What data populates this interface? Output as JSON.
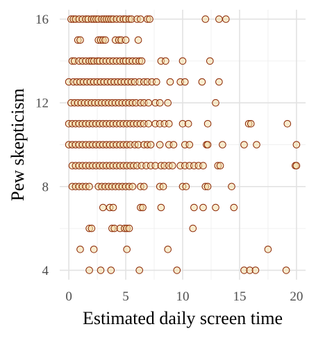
{
  "chart_data": {
    "type": "scatter",
    "title": "",
    "xlabel": "Estimated daily screen time",
    "ylabel": "Pew skepticism",
    "xlim": [
      -0.8,
      20.8
    ],
    "ylim": [
      3.55,
      16.45
    ],
    "x_ticks": [
      0,
      5,
      10,
      15,
      20
    ],
    "y_ticks": [
      4,
      8,
      12,
      16
    ],
    "grid": true,
    "legend": "none",
    "marker": {
      "shape": "open-circle",
      "stroke": "#8B2500",
      "fill": "#F2DDA6"
    },
    "points": [
      [
        0.2,
        16
      ],
      [
        0.4,
        16
      ],
      [
        0.6,
        16
      ],
      [
        0.9,
        16
      ],
      [
        1.2,
        16
      ],
      [
        1.5,
        16
      ],
      [
        1.7,
        16
      ],
      [
        2.0,
        16
      ],
      [
        2.2,
        16
      ],
      [
        2.4,
        16
      ],
      [
        2.6,
        16
      ],
      [
        2.9,
        16
      ],
      [
        3.1,
        16
      ],
      [
        3.3,
        16
      ],
      [
        3.5,
        16
      ],
      [
        3.7,
        16
      ],
      [
        3.9,
        16
      ],
      [
        4.2,
        16
      ],
      [
        4.5,
        16
      ],
      [
        4.8,
        16
      ],
      [
        5.0,
        16
      ],
      [
        5.3,
        16
      ],
      [
        5.5,
        16
      ],
      [
        6.0,
        16
      ],
      [
        6.3,
        16
      ],
      [
        6.9,
        16
      ],
      [
        7.1,
        16
      ],
      [
        12.0,
        16
      ],
      [
        13.2,
        16
      ],
      [
        13.8,
        16
      ],
      [
        0.8,
        15
      ],
      [
        1.0,
        15
      ],
      [
        2.6,
        15
      ],
      [
        2.8,
        15
      ],
      [
        3.0,
        15
      ],
      [
        3.2,
        15
      ],
      [
        4.1,
        15
      ],
      [
        4.4,
        15
      ],
      [
        4.6,
        15
      ],
      [
        5.0,
        15
      ],
      [
        6.1,
        15
      ],
      [
        0.3,
        14
      ],
      [
        0.5,
        14
      ],
      [
        0.9,
        14
      ],
      [
        1.2,
        14
      ],
      [
        1.5,
        14
      ],
      [
        1.8,
        14
      ],
      [
        2.0,
        14
      ],
      [
        2.2,
        14
      ],
      [
        2.5,
        14
      ],
      [
        2.7,
        14
      ],
      [
        3.0,
        14
      ],
      [
        3.3,
        14
      ],
      [
        3.6,
        14
      ],
      [
        3.9,
        14
      ],
      [
        4.2,
        14
      ],
      [
        4.5,
        14
      ],
      [
        4.8,
        14
      ],
      [
        5.0,
        14
      ],
      [
        5.3,
        14
      ],
      [
        5.6,
        14
      ],
      [
        5.9,
        14
      ],
      [
        6.2,
        14
      ],
      [
        6.4,
        14
      ],
      [
        8.1,
        14
      ],
      [
        8.5,
        14
      ],
      [
        10.0,
        14
      ],
      [
        12.4,
        14
      ],
      [
        0.0,
        13
      ],
      [
        0.4,
        13
      ],
      [
        0.7,
        13
      ],
      [
        1.0,
        13
      ],
      [
        1.3,
        13
      ],
      [
        1.6,
        13
      ],
      [
        1.9,
        13
      ],
      [
        2.2,
        13
      ],
      [
        2.5,
        13
      ],
      [
        2.8,
        13
      ],
      [
        3.1,
        13
      ],
      [
        3.4,
        13
      ],
      [
        3.7,
        13
      ],
      [
        4.0,
        13
      ],
      [
        4.3,
        13
      ],
      [
        4.6,
        13
      ],
      [
        4.9,
        13
      ],
      [
        5.2,
        13
      ],
      [
        5.5,
        13
      ],
      [
        5.8,
        13
      ],
      [
        6.2,
        13
      ],
      [
        6.6,
        13
      ],
      [
        6.9,
        13
      ],
      [
        7.3,
        13
      ],
      [
        7.7,
        13
      ],
      [
        8.9,
        13
      ],
      [
        9.8,
        13
      ],
      [
        10.2,
        13
      ],
      [
        11.7,
        13
      ],
      [
        13.2,
        13
      ],
      [
        0.2,
        12
      ],
      [
        0.5,
        12
      ],
      [
        0.8,
        12
      ],
      [
        1.1,
        12
      ],
      [
        1.4,
        12
      ],
      [
        1.7,
        12
      ],
      [
        2.0,
        12
      ],
      [
        2.3,
        12
      ],
      [
        2.6,
        12
      ],
      [
        2.9,
        12
      ],
      [
        3.2,
        12
      ],
      [
        3.5,
        12
      ],
      [
        3.8,
        12
      ],
      [
        4.1,
        12
      ],
      [
        4.4,
        12
      ],
      [
        4.7,
        12
      ],
      [
        5.0,
        12
      ],
      [
        5.3,
        12
      ],
      [
        5.6,
        12
      ],
      [
        5.9,
        12
      ],
      [
        6.3,
        12
      ],
      [
        6.6,
        12
      ],
      [
        7.0,
        12
      ],
      [
        7.6,
        12
      ],
      [
        8.0,
        12
      ],
      [
        8.7,
        12
      ],
      [
        12.9,
        12
      ],
      [
        0.0,
        11
      ],
      [
        0.3,
        11
      ],
      [
        0.6,
        11
      ],
      [
        0.9,
        11
      ],
      [
        1.2,
        11
      ],
      [
        1.5,
        11
      ],
      [
        1.8,
        11
      ],
      [
        2.1,
        11
      ],
      [
        2.4,
        11
      ],
      [
        2.7,
        11
      ],
      [
        3.0,
        11
      ],
      [
        3.3,
        11
      ],
      [
        3.6,
        11
      ],
      [
        3.9,
        11
      ],
      [
        4.2,
        11
      ],
      [
        4.5,
        11
      ],
      [
        4.8,
        11
      ],
      [
        5.1,
        11
      ],
      [
        5.4,
        11
      ],
      [
        5.7,
        11
      ],
      [
        6.0,
        11
      ],
      [
        6.3,
        11
      ],
      [
        6.6,
        11
      ],
      [
        7.0,
        11
      ],
      [
        7.6,
        11
      ],
      [
        8.0,
        11
      ],
      [
        8.4,
        11
      ],
      [
        8.8,
        11
      ],
      [
        10.0,
        11
      ],
      [
        10.5,
        11
      ],
      [
        12.2,
        11
      ],
      [
        15.8,
        11
      ],
      [
        16.0,
        11
      ],
      [
        19.2,
        11
      ],
      [
        0.0,
        10
      ],
      [
        0.3,
        10
      ],
      [
        0.6,
        10
      ],
      [
        0.9,
        10
      ],
      [
        1.2,
        10
      ],
      [
        1.5,
        10
      ],
      [
        1.8,
        10
      ],
      [
        2.1,
        10
      ],
      [
        2.4,
        10
      ],
      [
        2.7,
        10
      ],
      [
        3.0,
        10
      ],
      [
        3.3,
        10
      ],
      [
        3.6,
        10
      ],
      [
        3.9,
        10
      ],
      [
        4.2,
        10
      ],
      [
        4.5,
        10
      ],
      [
        4.8,
        10
      ],
      [
        5.1,
        10
      ],
      [
        5.4,
        10
      ],
      [
        5.8,
        10
      ],
      [
        6.1,
        10
      ],
      [
        6.6,
        10
      ],
      [
        6.9,
        10
      ],
      [
        7.2,
        10
      ],
      [
        8.0,
        10
      ],
      [
        8.8,
        10
      ],
      [
        9.2,
        10
      ],
      [
        10.2,
        10
      ],
      [
        10.6,
        10
      ],
      [
        12.1,
        10
      ],
      [
        12.2,
        10
      ],
      [
        13.5,
        10
      ],
      [
        15.4,
        10
      ],
      [
        16.5,
        10
      ],
      [
        20.0,
        10
      ],
      [
        0.3,
        9
      ],
      [
        0.6,
        9
      ],
      [
        0.9,
        9
      ],
      [
        1.2,
        9
      ],
      [
        1.5,
        9
      ],
      [
        1.8,
        9
      ],
      [
        2.1,
        9
      ],
      [
        2.4,
        9
      ],
      [
        2.7,
        9
      ],
      [
        3.0,
        9
      ],
      [
        3.3,
        9
      ],
      [
        3.6,
        9
      ],
      [
        3.9,
        9
      ],
      [
        4.2,
        9
      ],
      [
        4.5,
        9
      ],
      [
        4.8,
        9
      ],
      [
        5.1,
        9
      ],
      [
        5.4,
        9
      ],
      [
        5.7,
        9
      ],
      [
        6.0,
        9
      ],
      [
        6.4,
        9
      ],
      [
        6.8,
        9
      ],
      [
        7.2,
        9
      ],
      [
        7.6,
        9
      ],
      [
        8.1,
        9
      ],
      [
        8.4,
        9
      ],
      [
        8.8,
        9
      ],
      [
        9.1,
        9
      ],
      [
        9.8,
        9
      ],
      [
        10.2,
        9
      ],
      [
        10.6,
        9
      ],
      [
        11.0,
        9
      ],
      [
        11.4,
        9
      ],
      [
        11.8,
        9
      ],
      [
        13.1,
        9
      ],
      [
        13.3,
        9
      ],
      [
        19.9,
        9
      ],
      [
        20.0,
        9
      ],
      [
        0.3,
        8
      ],
      [
        0.6,
        8
      ],
      [
        0.9,
        8
      ],
      [
        1.2,
        8
      ],
      [
        1.5,
        8
      ],
      [
        1.8,
        8
      ],
      [
        2.6,
        8
      ],
      [
        2.9,
        8
      ],
      [
        3.2,
        8
      ],
      [
        3.5,
        8
      ],
      [
        3.8,
        8
      ],
      [
        4.1,
        8
      ],
      [
        4.4,
        8
      ],
      [
        4.7,
        8
      ],
      [
        5.0,
        8
      ],
      [
        5.3,
        8
      ],
      [
        5.6,
        8
      ],
      [
        6.3,
        8
      ],
      [
        6.6,
        8
      ],
      [
        8.0,
        8
      ],
      [
        8.3,
        8
      ],
      [
        10.0,
        8
      ],
      [
        10.3,
        8
      ],
      [
        12.0,
        8
      ],
      [
        12.2,
        8
      ],
      [
        14.3,
        8
      ],
      [
        3.0,
        7
      ],
      [
        3.6,
        7
      ],
      [
        3.9,
        7
      ],
      [
        6.3,
        7
      ],
      [
        6.5,
        7
      ],
      [
        8.1,
        7
      ],
      [
        11.0,
        7
      ],
      [
        11.8,
        7
      ],
      [
        12.9,
        7
      ],
      [
        14.5,
        7
      ],
      [
        1.8,
        6
      ],
      [
        2.0,
        6
      ],
      [
        3.8,
        6
      ],
      [
        4.0,
        6
      ],
      [
        4.5,
        6
      ],
      [
        4.9,
        6
      ],
      [
        5.1,
        6
      ],
      [
        5.3,
        6
      ],
      [
        10.9,
        6
      ],
      [
        1.0,
        5
      ],
      [
        2.2,
        5
      ],
      [
        5.1,
        5
      ],
      [
        8.7,
        5
      ],
      [
        17.5,
        5
      ],
      [
        1.8,
        4
      ],
      [
        2.8,
        4
      ],
      [
        3.7,
        4
      ],
      [
        6.2,
        4
      ],
      [
        9.5,
        4
      ],
      [
        15.4,
        4
      ],
      [
        15.9,
        4
      ],
      [
        16.4,
        4
      ],
      [
        19.1,
        4
      ]
    ]
  }
}
